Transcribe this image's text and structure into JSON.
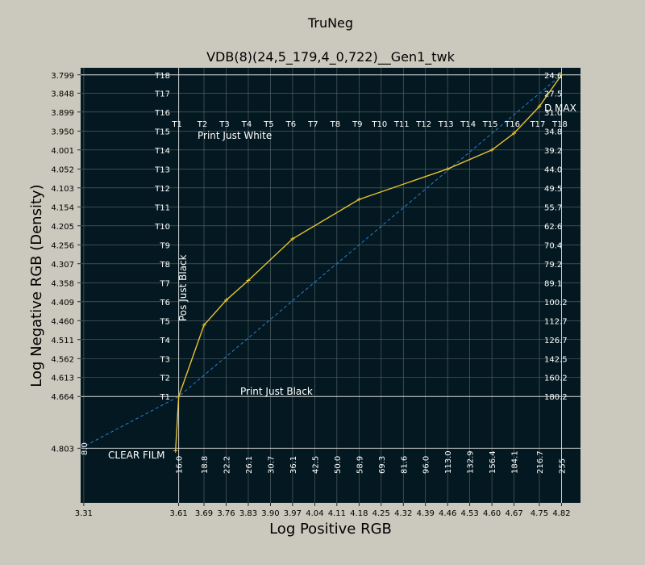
{
  "chart_data": {
    "type": "line",
    "title": "TruNeg",
    "subtitle": "VDB(8)(24,5_179,4_0,722)__Gen1_twk",
    "xlabel": "Log Positive RGB",
    "ylabel": "Log Negative RGB (Density)",
    "xlim": [
      3.3,
      4.88
    ],
    "ylim": [
      4.95,
      3.78
    ],
    "y_inverted": true,
    "grid": true,
    "background_color": "#031820",
    "frame_color": "#cbc9bd",
    "curve_color": "#e8c230",
    "diagonal_color": "#2f7fd0",
    "grid_color": "#5d6b72",
    "refline_color": "#dddddd",
    "label_color": "#ffffff",
    "x_ticks": [
      3.31,
      3.61,
      3.69,
      3.76,
      3.83,
      3.9,
      3.97,
      4.04,
      4.11,
      4.18,
      4.25,
      4.32,
      4.39,
      4.46,
      4.53,
      4.6,
      4.67,
      4.75,
      4.82
    ],
    "x_tick_labels": [
      "3.31",
      "3.61",
      "3.69",
      "3.76",
      "3.83",
      "3.90",
      "3.97",
      "4.04",
      "4.11",
      "4.18",
      "4.25",
      "4.32",
      "4.39",
      "4.46",
      "4.53",
      "4.60",
      "4.67",
      "4.75",
      "4.82"
    ],
    "y_ticks": [
      3.799,
      3.848,
      3.899,
      3.95,
      4.001,
      4.052,
      4.103,
      4.154,
      4.205,
      4.256,
      4.307,
      4.358,
      4.409,
      4.46,
      4.511,
      4.562,
      4.613,
      4.664,
      4.803
    ],
    "y_tick_labels": [
      "3.799",
      "3.848",
      "3.899",
      "3.950",
      "4.001",
      "4.052",
      "4.103",
      "4.154",
      "4.205",
      "4.256",
      "4.307",
      "4.358",
      "4.409",
      "4.460",
      "4.511",
      "4.562",
      "4.613",
      "4.664",
      "4.803"
    ],
    "top_labels": [
      "T1",
      "T2",
      "T3",
      "T4",
      "T5",
      "T6",
      "T7",
      "T8",
      "T9",
      "T10",
      "T11",
      "T12",
      "T13",
      "T14",
      "T15",
      "T16",
      "T17",
      "T18"
    ],
    "top_label_x": [
      3.61,
      3.69,
      3.76,
      3.83,
      3.9,
      3.97,
      4.04,
      4.11,
      4.18,
      4.25,
      4.32,
      4.39,
      4.46,
      4.53,
      4.6,
      4.67,
      4.75,
      4.82
    ],
    "left_labels": [
      "T18",
      "T17",
      "T16",
      "T15",
      "T14",
      "T13",
      "T12",
      "T11",
      "T10",
      "T9",
      "T8",
      "T7",
      "T6",
      "T5",
      "T4",
      "T3",
      "T2",
      "T1"
    ],
    "right_labels": [
      "24.6",
      "27.5",
      "31.0",
      "34.8",
      "39.2",
      "44.0",
      "49.5",
      "55.7",
      "62.6",
      "70.4",
      "79.2",
      "89.1",
      "100.2",
      "112.7",
      "126.7",
      "142.5",
      "160.2",
      "180.2"
    ],
    "bottom_labels": [
      "8.0",
      "16.0",
      "18.8",
      "22.2",
      "26.1",
      "30.7",
      "36.1",
      "42.5",
      "50.0",
      "58.9",
      "69.3",
      "81.6",
      "96.0",
      "113.0",
      "132.9",
      "156.4",
      "184.1",
      "216.7",
      "255"
    ],
    "ref_lines": {
      "x_pos_black": 3.61,
      "x_print_white": 4.82,
      "y_print_white": 3.799,
      "y_print_black": 4.664,
      "y_clear_film": 4.803
    },
    "annotations": {
      "d_max": "D MAX",
      "print_just_white": "Print Just White",
      "pos_just_black": "Pos Just Black",
      "print_just_black": "Print Just Black",
      "clear_film": "CLEAR FILM"
    },
    "series": [
      {
        "x": [
          3.6,
          3.61,
          3.69,
          3.76,
          3.83,
          3.97,
          4.18,
          4.46,
          4.6,
          4.67,
          4.75,
          4.82
        ],
        "y": [
          4.81,
          4.664,
          4.472,
          4.405,
          4.352,
          4.24,
          4.134,
          4.052,
          4.001,
          3.956,
          3.884,
          3.799
        ]
      },
      {
        "x": [
          3.3,
          3.61,
          4.82
        ],
        "y": [
          4.803,
          4.664,
          3.799
        ],
        "style": "dashed"
      }
    ]
  }
}
